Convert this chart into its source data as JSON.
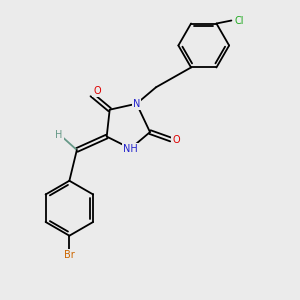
{
  "background_color": "#ebebeb",
  "fig_size": [
    3.0,
    3.0
  ],
  "dpi": 100,
  "colors": {
    "C": "#000000",
    "N": "#2222cc",
    "O": "#dd0000",
    "Br": "#cc6600",
    "Cl": "#22aa22",
    "H": "#669988",
    "bond": "#000000"
  },
  "xlim": [
    0,
    10
  ],
  "ylim": [
    0,
    10
  ]
}
